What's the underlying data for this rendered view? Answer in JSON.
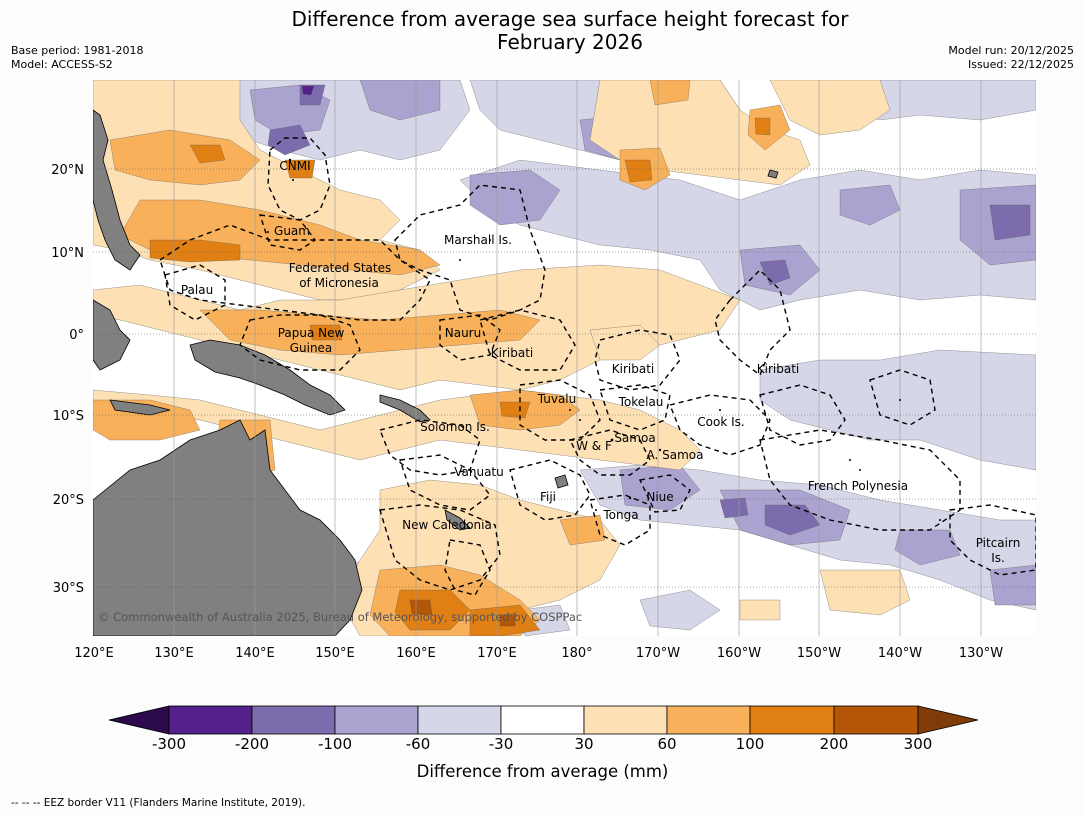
{
  "header": {
    "title_line1": "Difference from average sea surface height forecast for",
    "title_line2": "February 2026",
    "base_period": "Base period: 1981-2018",
    "model": "Model: ACCESS-S2",
    "model_run": "Model run: 20/12/2025",
    "issued": "Issued: 22/12/2025"
  },
  "map": {
    "lat_ticks": [
      "20°N",
      "10°N",
      "0°",
      "10°S",
      "20°S",
      "30°S"
    ],
    "lon_ticks": [
      "120°E",
      "130°E",
      "140°E",
      "150°E",
      "160°E",
      "170°E",
      "180°",
      "170°W",
      "160°W",
      "150°W",
      "140°W",
      "130°W"
    ],
    "region_labels": {
      "cnmi": "CNMI",
      "guam": "Guam",
      "marshall": "Marshall Is.",
      "fsm_line1": "Federated States",
      "fsm_line2": "of Micronesia",
      "palau": "Palau",
      "png_line1": "Papua New",
      "png_line2": "Guinea",
      "nauru": "Nauru",
      "kiribati_w": "Kiribati",
      "kiribati_c": "Kiribati",
      "kiribati_e": "Kiribati",
      "tuvalu": "Tuvalu",
      "tokelau": "Tokelau",
      "cook": "Cook Is.",
      "solomon": "Solomon Is.",
      "samoa": "Samoa",
      "wf": "W & F",
      "asamoa": "A. Samoa",
      "vanuatu": "Vanuatu",
      "fiji": "Fiji",
      "niue": "Niue",
      "tonga": "Tonga",
      "french_polynesia": "French Polynesia",
      "new_caledonia": "New Caledonia",
      "pitcairn_line1": "Pitcairn",
      "pitcairn_line2": "Is."
    },
    "copyright": "© Commonwealth of Australia 2025, Bureau of Meteorology, supported by COSPPac",
    "colors": {
      "land": "#808080",
      "neg_extreme": "#2d0a4e",
      "neg300": "#54218a",
      "neg200": "#7d6cad",
      "neg100": "#aba3cf",
      "neg60": "#d6d6e9",
      "neutral": "#ffffff",
      "pos30": "#fde0b4",
      "pos60": "#f8b15a",
      "pos100": "#e07f14",
      "pos200": "#b35606",
      "pos_extreme": "#7f3b08"
    }
  },
  "colorbar": {
    "tick_labels": [
      "-300",
      "-200",
      "-100",
      "-60",
      "-30",
      "30",
      "60",
      "100",
      "200",
      "300"
    ],
    "title": "Difference from average (mm)"
  },
  "footnote": "--  --  -- EEZ border V11 (Flanders Marine Institute, 2019)."
}
